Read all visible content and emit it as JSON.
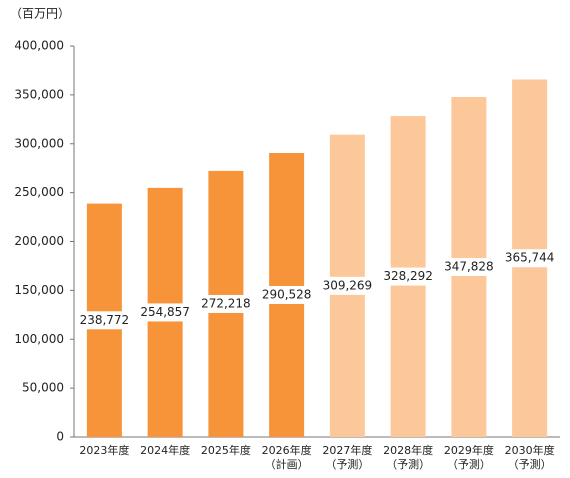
{
  "chart_data": {
    "type": "bar",
    "y_label": "（百万円）",
    "categories": [
      "2023年度",
      "2024年度",
      "2025年度",
      "2026年度",
      "2027年度",
      "2028年度",
      "2029年度",
      "2030年度"
    ],
    "category_notes": [
      null,
      null,
      null,
      "（計画）",
      "（予測）",
      "（予測）",
      "（予測）",
      "（予測）"
    ],
    "values": [
      238772,
      254857,
      272218,
      290528,
      309269,
      328292,
      347828,
      365744
    ],
    "value_labels": [
      "238,772",
      "254,857",
      "272,218",
      "290,528",
      "309,269",
      "328,292",
      "347,828",
      "365,744"
    ],
    "colors": [
      "#f7943a",
      "#f7943a",
      "#f7943a",
      "#f7943a",
      "#fcc89a",
      "#fcc89a",
      "#fcc89a",
      "#fcc89a"
    ],
    "ylim": [
      0,
      400000
    ],
    "yticks": [
      {
        "value": 0,
        "label": "0"
      },
      {
        "value": 50000,
        "label": "50,000"
      },
      {
        "value": 100000,
        "label": "100,000"
      },
      {
        "value": 150000,
        "label": "150,000"
      },
      {
        "value": 200000,
        "label": "200,000"
      },
      {
        "value": 250000,
        "label": "250,000"
      },
      {
        "value": 300000,
        "label": "300,000"
      },
      {
        "value": 350000,
        "label": "350,000"
      },
      {
        "value": 400000,
        "label": "400,000"
      }
    ],
    "grid": false
  }
}
